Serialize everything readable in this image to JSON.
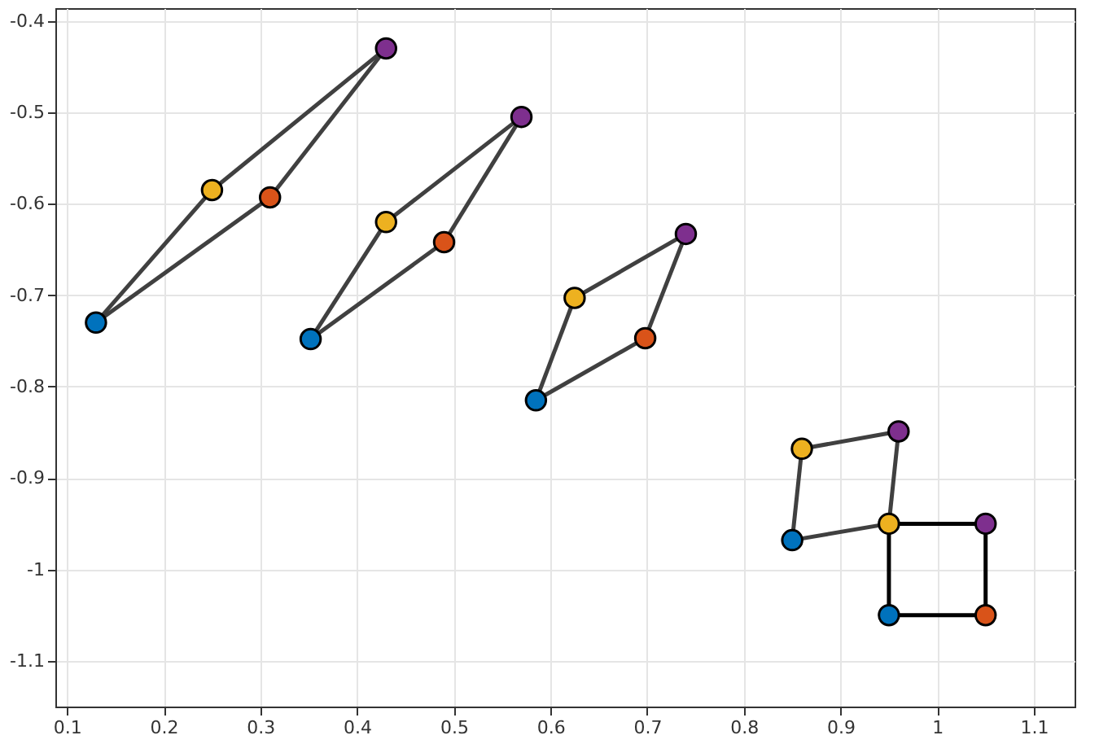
{
  "chart_data": {
    "type": "scatter",
    "xlim": [
      0.088,
      1.142
    ],
    "ylim": [
      -1.15,
      -0.386
    ],
    "xticks": [
      0.1,
      0.2,
      0.3,
      0.4,
      0.5,
      0.6,
      0.7,
      0.8,
      0.9,
      1,
      1.1
    ],
    "yticks": [
      -1.1,
      -1,
      -0.9,
      -0.8,
      -0.7,
      -0.6,
      -0.5,
      -0.4
    ],
    "grid": true,
    "series": [
      {
        "type": "line",
        "color": "#404040",
        "x": [
          0.13,
          0.25
        ],
        "values": [
          -0.73,
          -0.585
        ]
      },
      {
        "type": "line",
        "color": "#404040",
        "x": [
          0.25,
          0.43
        ],
        "values": [
          -0.585,
          -0.43
        ]
      },
      {
        "type": "line",
        "color": "#404040",
        "x": [
          0.43,
          0.31
        ],
        "values": [
          -0.43,
          -0.593
        ]
      },
      {
        "type": "line",
        "color": "#404040",
        "x": [
          0.31,
          0.13
        ],
        "values": [
          -0.593,
          -0.73
        ]
      },
      {
        "type": "line",
        "color": "#404040",
        "x": [
          0.352,
          0.43
        ],
        "values": [
          -0.748,
          -0.62
        ]
      },
      {
        "type": "line",
        "color": "#404040",
        "x": [
          0.43,
          0.57
        ],
        "values": [
          -0.62,
          -0.505
        ]
      },
      {
        "type": "line",
        "color": "#404040",
        "x": [
          0.57,
          0.49
        ],
        "values": [
          -0.505,
          -0.642
        ]
      },
      {
        "type": "line",
        "color": "#404040",
        "x": [
          0.49,
          0.352
        ],
        "values": [
          -0.642,
          -0.748
        ]
      },
      {
        "type": "line",
        "color": "#404040",
        "x": [
          0.585,
          0.625
        ],
        "values": [
          -0.815,
          -0.703
        ]
      },
      {
        "type": "line",
        "color": "#404040",
        "x": [
          0.625,
          0.74
        ],
        "values": [
          -0.703,
          -0.633
        ]
      },
      {
        "type": "line",
        "color": "#404040",
        "x": [
          0.74,
          0.698
        ],
        "values": [
          -0.633,
          -0.747
        ]
      },
      {
        "type": "line",
        "color": "#404040",
        "x": [
          0.698,
          0.585
        ],
        "values": [
          -0.747,
          -0.815
        ]
      },
      {
        "type": "line",
        "color": "#404040",
        "x": [
          0.85,
          0.86
        ],
        "values": [
          -0.968,
          -0.868
        ]
      },
      {
        "type": "line",
        "color": "#404040",
        "x": [
          0.86,
          0.96
        ],
        "values": [
          -0.868,
          -0.849
        ]
      },
      {
        "type": "line",
        "color": "#404040",
        "x": [
          0.96,
          0.95
        ],
        "values": [
          -0.849,
          -0.95
        ]
      },
      {
        "type": "line",
        "color": "#404040",
        "x": [
          0.95,
          0.85
        ],
        "values": [
          -0.95,
          -0.968
        ]
      },
      {
        "type": "line",
        "color": "#000000",
        "x": [
          0.95,
          0.95
        ],
        "values": [
          -1.05,
          -0.95
        ]
      },
      {
        "type": "line",
        "color": "#000000",
        "x": [
          0.95,
          1.05
        ],
        "values": [
          -0.95,
          -0.95
        ]
      },
      {
        "type": "line",
        "color": "#000000",
        "x": [
          1.05,
          1.05
        ],
        "values": [
          -0.95,
          -1.05
        ]
      },
      {
        "type": "line",
        "color": "#000000",
        "x": [
          1.05,
          0.95
        ],
        "values": [
          -1.05,
          -1.05
        ]
      },
      {
        "type": "scatter",
        "marker": "circle",
        "color": "#0072bd",
        "x": [
          0.13,
          0.352,
          0.585,
          0.85,
          0.95
        ],
        "values": [
          -0.73,
          -0.748,
          -0.815,
          -0.968,
          -1.05
        ]
      },
      {
        "type": "scatter",
        "marker": "circle",
        "color": "#d95319",
        "x": [
          0.31,
          0.49,
          0.698,
          0.95,
          1.05
        ],
        "values": [
          -0.593,
          -0.642,
          -0.747,
          null,
          -1.05
        ]
      },
      {
        "type": "scatter",
        "marker": "circle",
        "color": "#7e2f8e",
        "x": [
          0.43,
          0.57,
          0.74,
          0.96,
          1.05
        ],
        "values": [
          -0.43,
          -0.505,
          -0.633,
          -0.849,
          -0.95
        ]
      },
      {
        "type": "scatter",
        "marker": "circle",
        "color": "#edb120",
        "x": [
          0.25,
          0.43,
          0.625,
          0.86,
          0.95
        ],
        "values": [
          -0.585,
          -0.62,
          -0.703,
          -0.868,
          -0.95
        ]
      }
    ]
  }
}
